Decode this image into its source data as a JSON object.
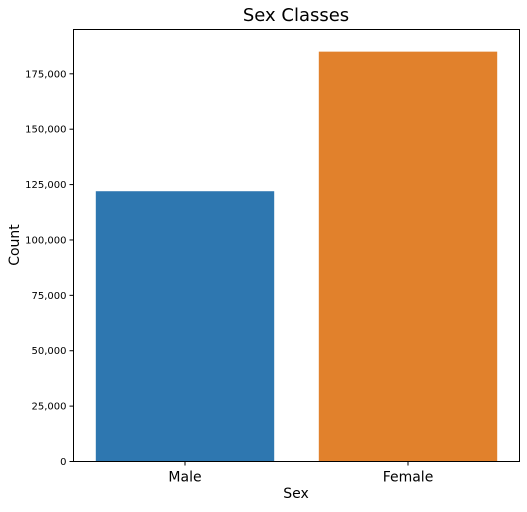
{
  "chart_data": {
    "type": "bar",
    "title": "Sex Classes",
    "xlabel": "Sex",
    "ylabel": "Count",
    "categories": [
      "Male",
      "Female"
    ],
    "values": [
      122000,
      185000
    ],
    "colors": [
      "#2e77b0",
      "#e1812c"
    ],
    "ylim": [
      0,
      195000
    ],
    "yticks": [
      0,
      25000,
      50000,
      75000,
      100000,
      125000,
      150000,
      175000
    ],
    "ytick_labels": [
      "0",
      "25,000",
      "50,000",
      "75,000",
      "100,000",
      "125,000",
      "150,000",
      "175,000"
    ],
    "grid": false,
    "legend": "none"
  }
}
